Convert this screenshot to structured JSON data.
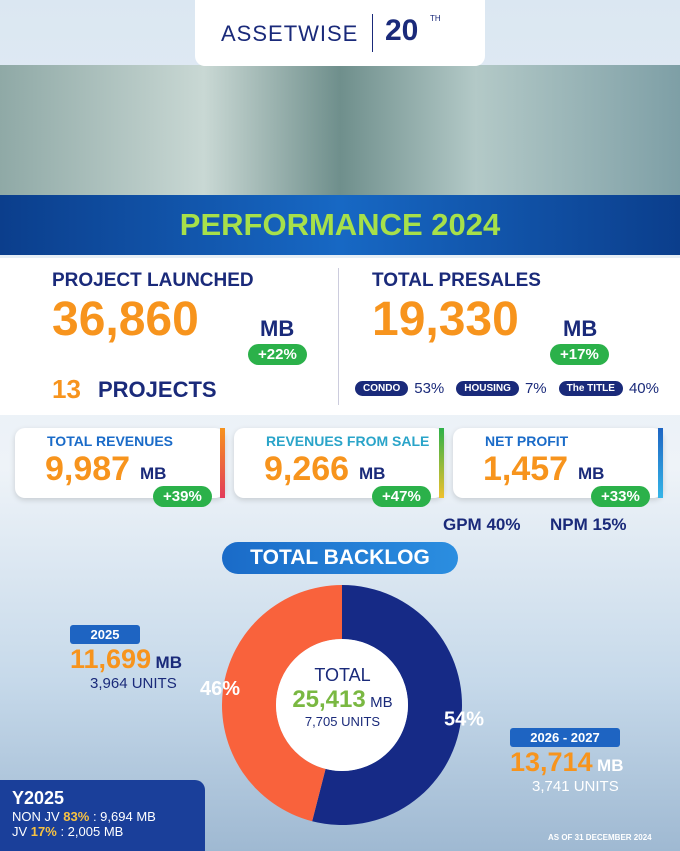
{
  "header": {
    "logo": "ASSETWISE",
    "anniversary": "20",
    "anniversary_sup": "TH"
  },
  "title": "PERFORMANCE 2024",
  "launched": {
    "label": "PROJECT LAUNCHED",
    "value": "36,860",
    "unit": "MB",
    "growth": "+22%",
    "count": "13",
    "count_label": "PROJECTS"
  },
  "presales": {
    "label": "TOTAL PRESALES",
    "value": "19,330",
    "unit": "MB",
    "growth": "+17%",
    "split": [
      {
        "name": "CONDO",
        "share": "53%"
      },
      {
        "name": "HOUSING",
        "share": "7%"
      },
      {
        "name": "The TITLE",
        "share": "40%"
      }
    ]
  },
  "cards": [
    {
      "label": "TOTAL REVENUES",
      "value": "9,987",
      "unit": "MB",
      "growth": "+39%"
    },
    {
      "label": "REVENUES FROM SALE",
      "value": "9,266",
      "unit": "MB",
      "growth": "+47%"
    },
    {
      "label": "NET PROFIT",
      "value": "1,457",
      "unit": "MB",
      "growth": "+33%"
    }
  ],
  "margins": [
    "GPM 40%",
    "NPM 15%"
  ],
  "backlog_title": "TOTAL BACKLOG",
  "chart_data": {
    "type": "donut",
    "values": [
      46,
      54
    ],
    "value_labels": [
      "46%",
      "54%"
    ],
    "colors": [
      "#f9623c",
      "#162a86"
    ],
    "center": {
      "label": "TOTAL",
      "value": "25,413",
      "unit": "MB",
      "units": "7,705 UNITS"
    }
  },
  "periods": [
    {
      "label": "2025",
      "value": "11,699",
      "unit": "MB",
      "units": "3,964 UNITS"
    },
    {
      "label": "2026 - 2027",
      "value": "13,714",
      "unit": "MB",
      "units": "3,741 UNITS"
    }
  ],
  "y2025": {
    "title": "Y2025",
    "rows": [
      {
        "label": "NON JV",
        "share": "83%",
        "amount": ": 9,694 MB"
      },
      {
        "label": "JV",
        "share": "17%",
        "amount": ": 2,005 MB"
      }
    ]
  },
  "note": "AS OF 31 DECEMBER 2024"
}
